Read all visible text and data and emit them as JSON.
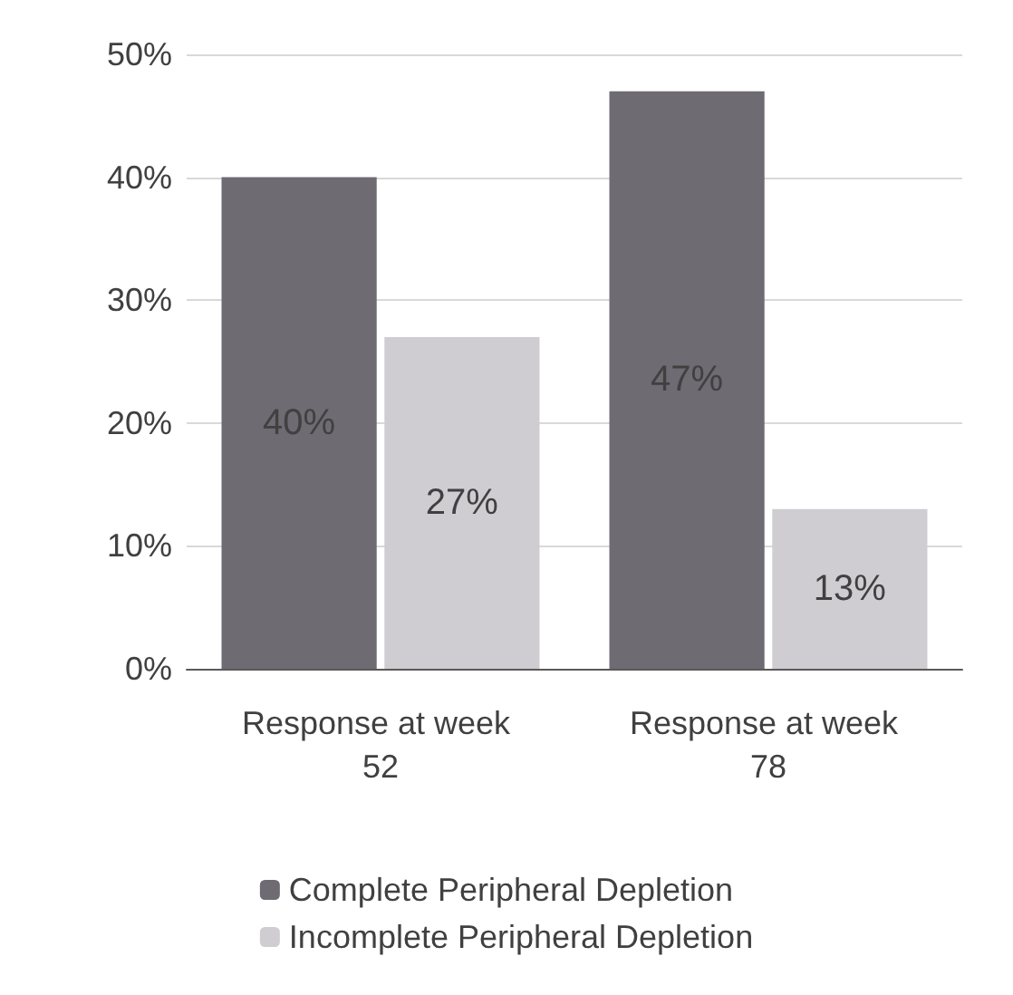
{
  "chart_data": {
    "type": "bar",
    "categories": [
      "Response at week 52",
      "Response at week 78"
    ],
    "series": [
      {
        "name": "Complete Peripheral Depletion",
        "color": "#6e6b73",
        "values": [
          40,
          47
        ],
        "value_labels": [
          "40%",
          "47%"
        ]
      },
      {
        "name": "Incomplete Peripheral Depletion",
        "color": "#cfcdd2",
        "values": [
          27,
          13
        ],
        "value_labels": [
          "27%",
          "13%"
        ]
      }
    ],
    "ylim": [
      0,
      50
    ],
    "yticks": [
      {
        "value": 0,
        "label": "0%"
      },
      {
        "value": 10,
        "label": "10%"
      },
      {
        "value": 20,
        "label": "20%"
      },
      {
        "value": 30,
        "label": "30%"
      },
      {
        "value": 40,
        "label": "40%"
      },
      {
        "value": 50,
        "label": "50%"
      }
    ],
    "grid": "y",
    "legend": "bottom"
  }
}
